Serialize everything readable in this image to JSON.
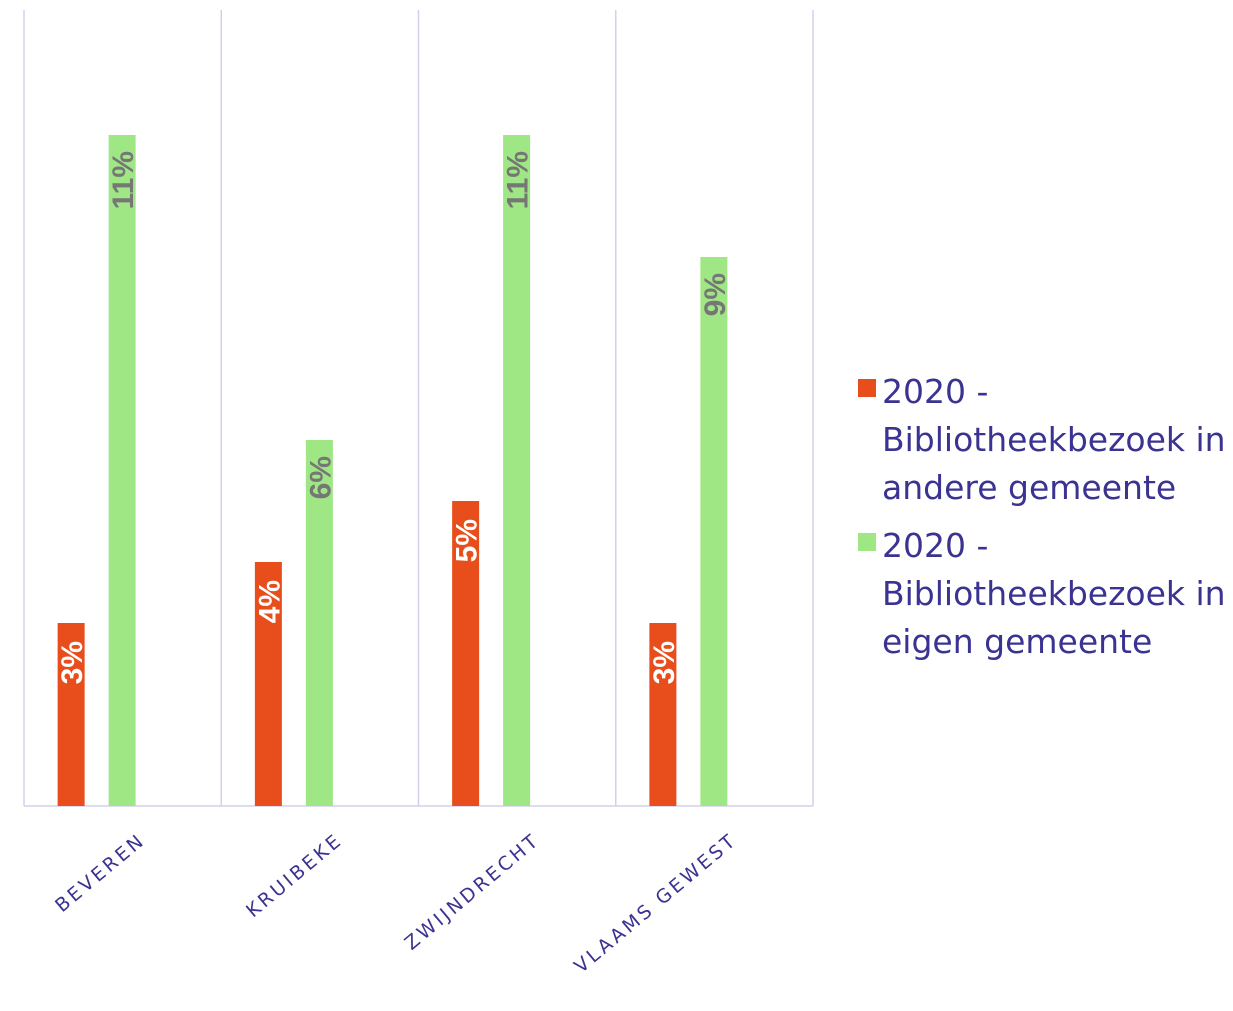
{
  "chart_data": {
    "type": "bar",
    "categories": [
      "BEVEREN",
      "KRUIBEKE",
      "ZWIJNDRECHT",
      "VLAAMS GEWEST"
    ],
    "series": [
      {
        "name": "2020 - Bibliotheekbezoek in andere gemeente",
        "color": "#e84e1b",
        "values": [
          3,
          4,
          5,
          3
        ],
        "labels": [
          "3%",
          "4%",
          "5%",
          "3%"
        ]
      },
      {
        "name": "2020 - Bibliotheekbezoek in eigen gemeente",
        "color": "#9fe684",
        "values": [
          11,
          6,
          11,
          9
        ],
        "labels": [
          "11%",
          "6%",
          "11%",
          "9%"
        ]
      }
    ],
    "ylim": [
      0,
      12
    ],
    "grid": "vertical category separators",
    "legend_position": "right",
    "colors": {
      "axis_text": "#3b3391",
      "gridline": "#d4d0ec",
      "label_on_red": "#ffffff",
      "label_on_green": "#767676"
    }
  }
}
